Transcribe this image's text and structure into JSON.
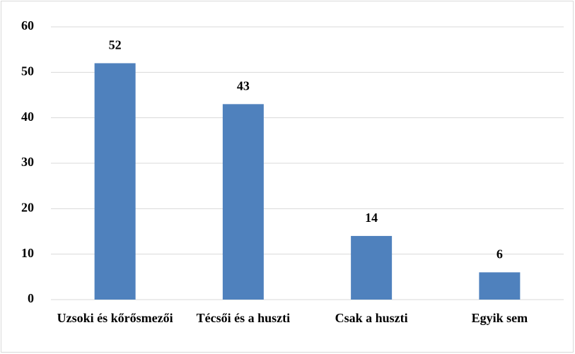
{
  "chart_data": {
    "type": "bar",
    "categories": [
      "Uzsoki és kőrősmezői",
      "Técsői és a huszti",
      "Csak a huszti",
      "Egyik sem"
    ],
    "values": [
      52,
      43,
      14,
      6
    ],
    "color": "#4f81bd",
    "ylim": [
      0,
      60
    ],
    "yticks": [
      0,
      10,
      20,
      30,
      40,
      50,
      60
    ],
    "grid": true
  }
}
